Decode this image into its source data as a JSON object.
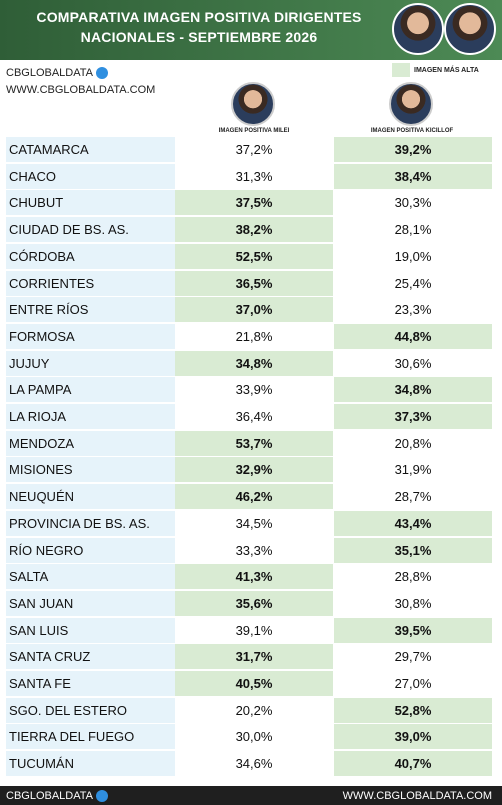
{
  "header": {
    "title_lines": [
      "COMPARATIVA IMAGEN POSITIVA DIRIGENTES",
      "NACIONALES - SEPTIEMBRE 2026"
    ]
  },
  "brand": {
    "name": "CBGLOBALDATA",
    "url": "WWW.CBGLOBALDATA.COM"
  },
  "legend": {
    "label": "IMAGEN MÁS ALTA"
  },
  "table": {
    "columns": [
      "IMAGEN POSITIVA MILEI",
      "IMAGEN POSITIVA KICILLOF"
    ],
    "rows": [
      [
        "CATAMARCA",
        "37,2%",
        "39,2%"
      ],
      [
        "CHACO",
        "31,3%",
        "38,4%"
      ],
      [
        "CHUBUT",
        "37,5%",
        "30,3%"
      ],
      [
        "CIUDAD DE BS. AS.",
        "38,2%",
        "28,1%"
      ],
      [
        "CÓRDOBA",
        "52,5%",
        "19,0%"
      ],
      [
        "CORRIENTES",
        "36,5%",
        "25,4%"
      ],
      [
        "ENTRE RÍOS",
        "37,0%",
        "23,3%"
      ],
      [
        "FORMOSA",
        "21,8%",
        "44,8%"
      ],
      [
        "JUJUY",
        "34,8%",
        "30,6%"
      ],
      [
        "LA PAMPA",
        "33,9%",
        "34,8%"
      ],
      [
        "LA RIOJA",
        "36,4%",
        "37,3%"
      ],
      [
        "MENDOZA",
        "53,7%",
        "20,8%"
      ],
      [
        "MISIONES",
        "32,9%",
        "31,9%"
      ],
      [
        "NEUQUÉN",
        "46,2%",
        "28,7%"
      ],
      [
        "PROVINCIA DE BS. AS.",
        "34,5%",
        "43,4%"
      ],
      [
        "RÍO NEGRO",
        "33,3%",
        "35,1%"
      ],
      [
        "SALTA",
        "41,3%",
        "28,8%"
      ],
      [
        "SAN JUAN",
        "35,6%",
        "30,8%"
      ],
      [
        "SAN LUIS",
        "39,1%",
        "39,5%"
      ],
      [
        "SANTA CRUZ",
        "31,7%",
        "29,7%"
      ],
      [
        "SANTA FE",
        "40,5%",
        "27,0%"
      ],
      [
        "SGO. DEL ESTERO",
        "20,2%",
        "52,8%"
      ],
      [
        "TIERRA DEL FUEGO",
        "30,0%",
        "39,0%"
      ],
      [
        "TUCUMÁN",
        "34,6%",
        "40,7%"
      ]
    ]
  },
  "footer": {
    "left": "CBGLOBALDATA",
    "right": "WWW.CBGLOBALDATA.COM"
  }
}
